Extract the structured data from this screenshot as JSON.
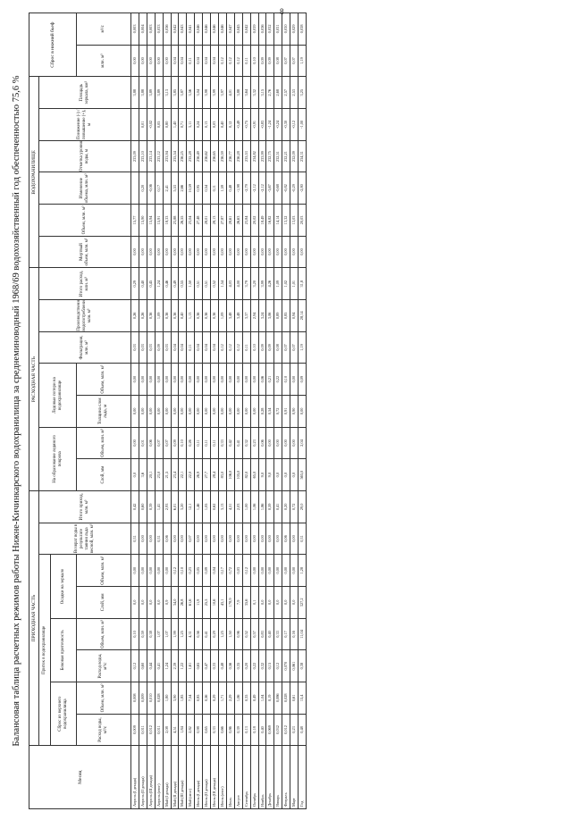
{
  "page_number": "8",
  "title": "Балансовая таблица расчетных режимов работы Нижне-Кичинкарского водохранилища за среднеминоводный 1968/69 водохозяйственный год обеспеченностью 75,6 %",
  "headers": {
    "month": "Месяц",
    "income": "ПРИХОДНАЯ ЧАСТЬ",
    "expense": "РАСХОДНАЯ ЧАСТЬ",
    "inflow": "Приток в водохранилище",
    "storage": "ВОДОХРАНИЛИЩЕ",
    "upstream_discharge": "Сброс из верхнего водохранилища",
    "lateral_inflow": "Боковая приточность",
    "reservoir_precip": "Осадки на зеркало",
    "return_water": "Возврат воды в результате таяния льда весной, млн. м³",
    "total_income": "Итого приход, млн. м³",
    "ice_formation": "На образование ледяного покрова",
    "ice_losses": "Ледовые потери на водохранилище",
    "filtration": "Фильтрация, млн. м³",
    "industrial": "Производственное водопотребление, млн. м³",
    "total_expense": "Итого расход, млн. м³",
    "dead_volume": "Мертвый объем, млн. м³",
    "volume": "Объем, млн. м³",
    "volume_change": "Изменение объема, млн. м³",
    "level_mark": "Отметка уровня воды, м",
    "level_change": "Понижение (-) /повышение (+), м",
    "surface_area": "Площадь зеркала, км²",
    "spillway": "Сброс в нижний бьеф",
    "discharge_m3s": "Расход воды, м³/с",
    "volume_mln": "Объем, млн. м³",
    "layer_mm": "Слой, мм",
    "ice_layer": "Толщина слоя льда, м",
    "mln_m3": "млн. м³",
    "m3s": "м³/с"
  },
  "column_numbers": [
    "1",
    "2",
    "3",
    "4",
    "5",
    "6",
    "7",
    "8",
    "9",
    "10",
    "11",
    "12",
    "13",
    "14",
    "15",
    "16",
    "17",
    "18",
    "19",
    "20",
    "21",
    "22",
    "23",
    "24",
    "25",
    "26"
  ],
  "rows": [
    {
      "month": "Апрель (I декада)",
      "v": [
        "0,009",
        "0,008",
        "0,12",
        "0,10",
        "0,0",
        "0,00",
        "0,31",
        "0,42",
        "0,0",
        "0,00",
        "0,00",
        "0,00",
        "0,03",
        "0,26",
        "0,29",
        "0,00",
        "15,77",
        "",
        "233,09",
        "",
        "3,88",
        "0,00",
        "0,003"
      ]
    },
    {
      "month": "Апрель (II декада)",
      "v": [
        "0,011",
        "0,009",
        "0,60",
        "0,59",
        "0,0",
        "0,00",
        "0,00",
        "0,60",
        "3,6",
        "0,01",
        "0,00",
        "0,00",
        "0,03",
        "0,26",
        "0,40",
        "0,00",
        "15,90",
        "0,20",
        "233,10",
        "0,01",
        "3,88",
        "0,00",
        "0,004"
      ]
    },
    {
      "month": "Апрель (III декада)",
      "v": [
        "0,012",
        "0,010",
        "0,44",
        "0,38",
        "0,0",
        "0,00",
        "0,00",
        "0,39",
        "20,1",
        "0,06",
        "0,00",
        "0,00",
        "0,03",
        "0,36",
        "0,45",
        "0,00",
        "15,94",
        "-0,06",
        "233,14",
        "-0,02",
        "3,89",
        "0,00",
        "0,003"
      ]
    },
    {
      "month": "Апрель (итог)",
      "v": [
        "0,011",
        "0,028",
        "0,41",
        "1,07",
        "0,0",
        "0,00",
        "0,31",
        "1,41",
        "23,0",
        "0,07",
        "0,00",
        "0,00",
        "0,09",
        "1,09",
        "1,24",
        "0,00",
        "15,91",
        "0,17",
        "233,12",
        "0,05",
        "3,89",
        "0,00",
        "0,033"
      ]
    },
    {
      "month": "Май (I декада)",
      "v": [
        "2,08",
        "1,80",
        "1,24",
        "1,07",
        "0,9",
        "0,00",
        "0,06",
        "2,93",
        "21,5",
        "0,07",
        "0,00",
        "0,00",
        "0,03",
        "0,36",
        "0,46",
        "0,00",
        "18,33",
        "2,41",
        "233,94",
        "0,80",
        "3,13",
        "0,00",
        "0,036"
      ]
    },
    {
      "month": "Май (II декада)",
      "v": [
        "4,51",
        "3,90",
        "2,39",
        "1,99",
        "34,0",
        "0,12",
        "0,00",
        "6,01",
        "23,4",
        "0,09",
        "0,00",
        "0,00",
        "0,04",
        "0,36",
        "0,49",
        "0,00",
        "23,88",
        "5,53",
        "235,54",
        "1,40",
        "3,85",
        "0,04",
        "0,042"
      ]
    },
    {
      "month": "Май (III декада)",
      "v": [
        "1,84",
        "1,85",
        "1,22",
        "1,25",
        "26,8",
        "0,10",
        "0,00",
        "3,20",
        "22,1",
        "0,10",
        "0,00",
        "0,00",
        "0,04",
        "0,40",
        "0,55",
        "0,00",
        "26,55",
        "2,66",
        "236,25",
        "0,71",
        "3,87",
        "0,04",
        "0,043"
      ]
    },
    {
      "month": "Май (итог)",
      "v": [
        "2,82",
        "7,54",
        "1,61",
        "4,31",
        "61,6",
        "0,23",
        "0,07",
        "12,1",
        "22,0",
        "0,26",
        "0,00",
        "0,00",
        "0,11",
        "1,13",
        "1,50",
        "0,00",
        "23,04",
        "10,59",
        "235,28",
        "3,11",
        "3,56",
        "0,11",
        "0,041"
      ]
    },
    {
      "month": "Июнь (I декада)",
      "v": [
        "0,98",
        "0,85",
        "0,65",
        "0,56",
        "11,9",
        "0,05",
        "0,00",
        "1,46",
        "26,9",
        "0,11",
        "0,00",
        "0,00",
        "0,04",
        "0,36",
        "0,51",
        "0,00",
        "27,48",
        "0,95",
        "236,49",
        "0,24",
        "3,04",
        "0,04",
        "0,046"
      ]
    },
    {
      "month": "Июнь (II декада)",
      "v": [
        "0,65",
        "0,56",
        "0,47",
        "0,41",
        "25,5",
        "0,09",
        "0,00",
        "1,05",
        "27,7",
        "0,11",
        "0,00",
        "0,00",
        "0,04",
        "0,36",
        "0,51",
        "0,00",
        "28,01",
        "0,54",
        "236,62",
        "0,13",
        "3,98",
        "0,04",
        "0,046"
      ]
    },
    {
      "month": "Июнь (III декада)",
      "v": [
        "0,33",
        "0,29",
        "0,33",
        "0,29",
        "10,6",
        "0,04",
        "0,00",
        "0,62",
        "28,4",
        "0,11",
        "0,00",
        "0,00",
        "0,04",
        "0,36",
        "0,52",
        "0,00",
        "28,13",
        "0,11",
        "236,65",
        "0,03",
        "3,99",
        "0,04",
        "0,046"
      ]
    },
    {
      "month": "Июнь (итог)",
      "v": [
        "0,66",
        "1,71",
        "0,48",
        "1,25",
        "43,1",
        "0,17",
        "0,00",
        "3,13",
        "83,0",
        "0,33",
        "0,00",
        "0,00",
        "0,12",
        "1,09",
        "1,54",
        "0,00",
        "27,87",
        "1,59",
        "236,59",
        "0,40",
        "3,97",
        "0,12",
        "0,046"
      ]
    },
    {
      "month": "Июль",
      "v": [
        "0,86",
        "2,29",
        "0,56",
        "1,50",
        "178,9",
        "0,72",
        "0,00",
        "4,51",
        "106,0",
        "0,42",
        "0,00",
        "0,00",
        "0,12",
        "3,48",
        "4,03",
        "0,00",
        "28,61",
        "0,48",
        "236,77",
        "0,12",
        "4,01",
        "0,12",
        "0,047"
      ]
    },
    {
      "month": "Август",
      "v": [
        "0,39",
        "1,06",
        "0,35",
        "0,96",
        "7,9",
        "0,03",
        "0,00",
        "2,03",
        "105,0",
        "0,41",
        "0,00",
        "0,00",
        "0,12",
        "3,48",
        "4,00",
        "0,00",
        "26,63",
        "-1,98",
        "236,28",
        "-0,49",
        "3,88",
        "0,12",
        "0,045"
      ]
    },
    {
      "month": "Сентябрь",
      "v": [
        "0,13",
        "0,35",
        "0,20",
        "0,52",
        "35,6",
        "0,12",
        "0,00",
        "1,00",
        "82,0",
        "0,32",
        "0,00",
        "0,00",
        "0,11",
        "3,37",
        "3,79",
        "0,00",
        "23,84",
        "-2,79",
        "235,53",
        "-0,75",
        "3,64",
        "0,11",
        "0,042"
      ]
    },
    {
      "month": "Октябрь",
      "v": [
        "0,18",
        "0,49",
        "0,22",
        "0,57",
        "0,1",
        "0,00",
        "0,00",
        "1,06",
        "65,0",
        "0,23",
        "0,00",
        "0,00",
        "0,10",
        "2,94",
        "3,20",
        "0,00",
        "20,02",
        "-2,12",
        "234,82",
        "-0,91",
        "3,32",
        "0,10",
        "0,039"
      ]
    },
    {
      "month": "Ноябрь",
      "v": [
        "0,40",
        "1,04",
        "0,32",
        "0,83",
        "0,0",
        "0,00",
        "0,00",
        "1,86",
        "9,0",
        "0,06",
        "0,28",
        "0,06",
        "0,09",
        "3,24",
        "3,99",
        "0,00",
        "18,49",
        "-2,12",
        "233,99",
        "-0,83",
        "3,15",
        "0,09",
        "0,036"
      ]
    },
    {
      "month": "Декабрь",
      "v": [
        "0,069",
        "0,19",
        "0,15",
        "0,40",
        "0,0",
        "0,00",
        "0,00",
        "0,59",
        "9,0",
        "0,00",
        "0,54",
        "0,21",
        "0,09",
        "3,06",
        "4,26",
        "0,00",
        "16,82",
        "-3,67",
        "232,75",
        "-1,24",
        "2,76",
        "0,09",
        "0,032"
      ]
    },
    {
      "month": "Январь",
      "v": [
        "0,032",
        "0,086",
        "0,12",
        "0,33",
        "0,0",
        "0,00",
        "0,00",
        "0,41",
        "0,0",
        "0,00",
        "0,72",
        "0,22",
        "0,08",
        "0,89",
        "1,09",
        "0,00",
        "14,14",
        "-0,68",
        "232,51",
        "-0,24",
        "2,68",
        "0,08",
        "0,031"
      ]
    },
    {
      "month": "Февраль",
      "v": [
        "0,012",
        "0,028",
        "0,070",
        "0,17",
        "0,0",
        "0,00",
        "0,06",
        "0,20",
        "0,0",
        "0,00",
        "0,91",
        "0,10",
        "0,07",
        "0,85",
        "1,02",
        "0,00",
        "13,32",
        "-0,82",
        "232,21",
        "-0,30",
        "2,57",
        "0,07",
        "0,030"
      ]
    },
    {
      "month": "Март",
      "v": [
        "0,23",
        "0,61",
        "0,061",
        "0,16",
        "0,0",
        "0,00",
        "0,00",
        "0,72",
        "0,0",
        "0,00",
        "0,90",
        "0,00",
        "0,07",
        "0,94",
        "1,01",
        "0,00",
        "13,03",
        "-0,29",
        "232,09",
        "-0,12",
        "2,53",
        "0,07",
        "0,029"
      ]
    },
    {
      "month": "Год",
      "v": [
        "0,48",
        "15,4",
        "0,38",
        "11,04",
        "327,2",
        "1,28",
        "0,31",
        "29,0",
        "565,0",
        "2,04",
        "0,00",
        "0,09",
        "1,19",
        "28,14",
        "31,8",
        "0,00",
        "20,03",
        "-2,80",
        "234,31",
        "-1,00",
        "3,25",
        "1,19",
        "0,038"
      ]
    }
  ]
}
